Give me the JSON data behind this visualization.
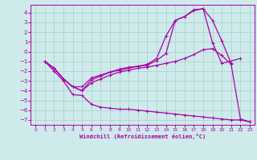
{
  "xlabel": "Windchill (Refroidissement éolien,°C)",
  "background_color": "#ceeaea",
  "grid_color": "#aacece",
  "line_color": "#aa00aa",
  "xlim": [
    -0.5,
    23.5
  ],
  "ylim": [
    -7.5,
    4.8
  ],
  "xticks": [
    0,
    1,
    2,
    3,
    4,
    5,
    6,
    7,
    8,
    9,
    10,
    11,
    12,
    13,
    14,
    15,
    16,
    17,
    18,
    19,
    20,
    21,
    22,
    23
  ],
  "yticks": [
    -7,
    -6,
    -5,
    -4,
    -3,
    -2,
    -1,
    0,
    1,
    2,
    3,
    4
  ],
  "series": {
    "x_all": [
      1,
      2,
      3,
      4,
      5,
      6,
      7,
      8,
      9,
      10,
      11,
      12,
      13,
      14,
      15,
      16,
      17,
      18,
      19,
      20,
      21,
      22,
      23
    ],
    "line1": [
      -1.0,
      -1.7,
      -2.8,
      -3.6,
      -3.6,
      -2.7,
      -2.4,
      -2.1,
      -1.8,
      -1.6,
      -1.5,
      -1.4,
      -0.9,
      -0.2,
      3.2,
      3.6,
      4.3,
      4.4,
      3.2,
      1.1,
      -1.2,
      null,
      null
    ],
    "line2": [
      -1.0,
      -1.7,
      -2.8,
      -3.6,
      -4.0,
      -2.9,
      -2.5,
      -2.1,
      -1.9,
      -1.7,
      -1.5,
      -1.3,
      -0.7,
      1.6,
      3.2,
      3.6,
      4.2,
      4.4,
      0.9,
      -1.2,
      null,
      -0.7,
      null
    ],
    "line3": [
      -1.0,
      -1.7,
      -2.8,
      -3.6,
      -4.0,
      -3.2,
      -2.8,
      -2.4,
      -2.1,
      -1.9,
      -1.7,
      -1.6,
      -1.4,
      -1.2,
      -1.0,
      -0.7,
      -0.3,
      0.2,
      0.3,
      -0.4,
      -1.3,
      -6.9,
      -7.2
    ],
    "line4": [
      -1.0,
      -2.0,
      -3.0,
      -4.4,
      -4.5,
      -5.4,
      -5.7,
      -5.8,
      -5.9,
      -5.9,
      -6.0,
      -6.1,
      -6.2,
      -6.3,
      -6.4,
      -6.5,
      -6.6,
      -6.7,
      -6.8,
      -6.9,
      -7.0,
      -7.0,
      -7.2
    ]
  },
  "marker": "+",
  "markersize": 3,
  "linewidth": 0.9
}
